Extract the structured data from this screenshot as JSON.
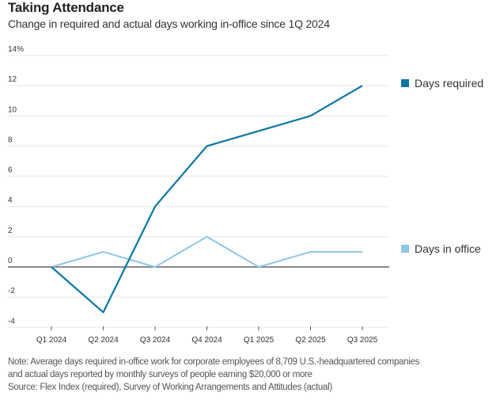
{
  "header": {
    "title": "Taking Attendance",
    "subtitle": "Change in required and actual days working in-office since 1Q 2024"
  },
  "chart_data": {
    "type": "line",
    "title": "Taking Attendance",
    "subtitle": "Change in required and actual days working in-office since 1Q 2024",
    "xlabel": "",
    "ylabel": "",
    "categories": [
      "Q1 2024",
      "Q2 2024",
      "Q3 2024",
      "Q4 2024",
      "Q1 2025",
      "Q2 2025",
      "Q3 2025"
    ],
    "ylim": [
      -4,
      14
    ],
    "yticks": [
      14,
      12,
      10,
      8,
      6,
      4,
      2,
      0,
      -2,
      -4
    ],
    "ytick_labels": [
      "14%",
      "12",
      "10",
      "8",
      "6",
      "4",
      "2",
      "0",
      "-2",
      "-4"
    ],
    "grid": true,
    "legend_placement": "right",
    "series": [
      {
        "name": "Days required",
        "color": "#0b77a6",
        "values": [
          0,
          -3,
          4,
          8,
          9,
          10,
          12
        ]
      },
      {
        "name": "Days in office",
        "color": "#8ec6ea",
        "values": [
          0,
          1,
          0,
          2,
          0,
          1,
          1
        ]
      }
    ]
  },
  "footer": {
    "note_line1": "Note: Average days required in-office work for corporate employees of 8,709 U.S.-headquartered companies",
    "note_line2": "and actual days reported by monthly surveys of people earning $20,000 or more",
    "source": "Source: Flex Index (required), Survey of Working Arrangements and Attitudes (actual)"
  }
}
